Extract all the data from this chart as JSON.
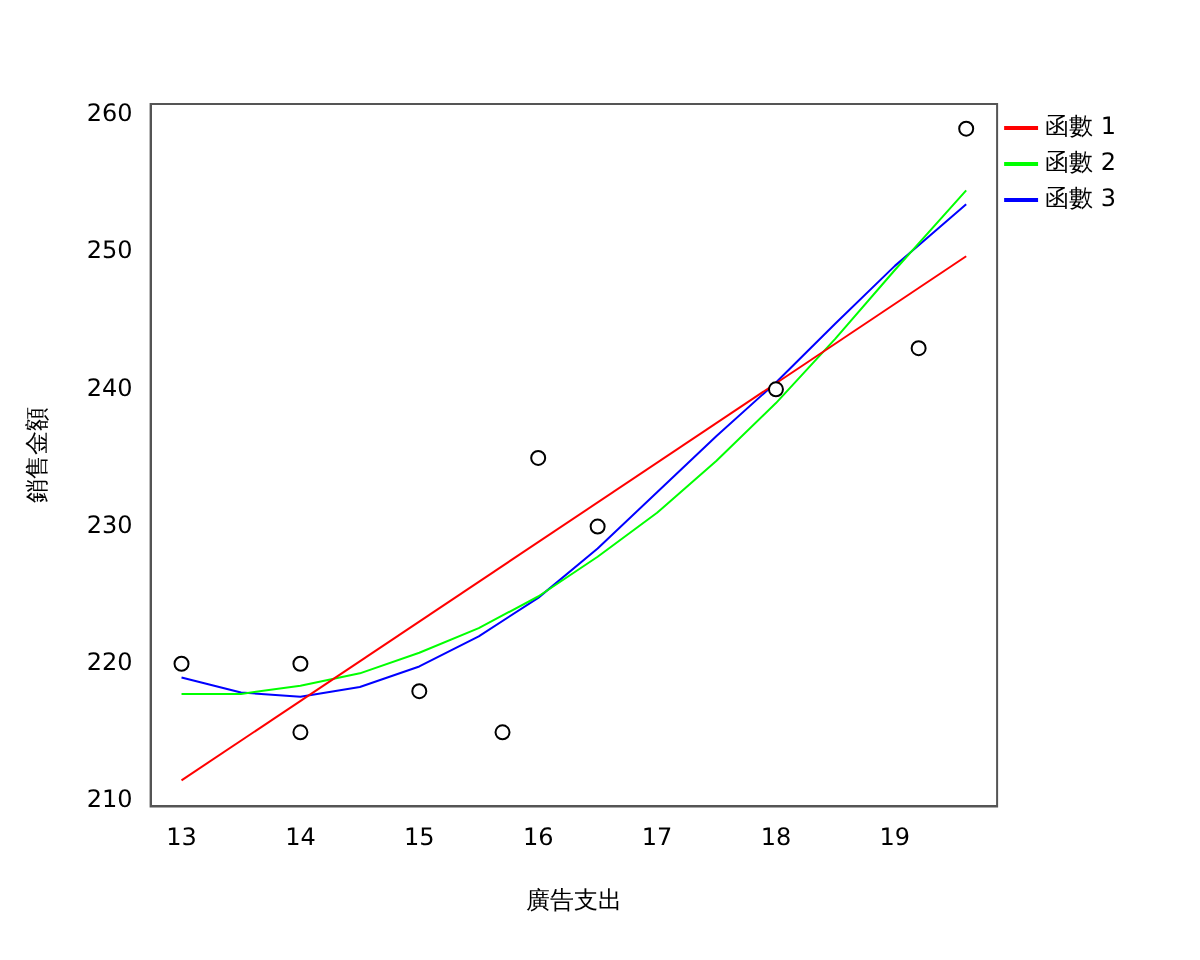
{
  "chart_data": {
    "type": "scatter",
    "xlabel": "廣告支出",
    "ylabel": "銷售金額",
    "xlim": [
      12.74,
      19.86
    ],
    "xticks": [
      13,
      14,
      15,
      16,
      17,
      18,
      19
    ],
    "ylim": [
      209.6,
      260.8
    ],
    "yticks": [
      210,
      220,
      230,
      240,
      250,
      260
    ],
    "grid": false,
    "legend": "top right",
    "series": [
      {
        "color": "#000000",
        "marker": "circle",
        "x": [
          13,
          14,
          14,
          15,
          15.7,
          16,
          16.5,
          18,
          19.2,
          19.6
        ],
        "values": [
          220,
          220,
          215,
          218,
          215,
          235,
          230,
          240,
          243,
          259
        ]
      },
      {
        "type": "line",
        "name": "函數 1",
        "color": "#ff0000",
        "marker": "none",
        "x": [
          13,
          19.6
        ],
        "values": [
          211.5,
          249.7
        ]
      },
      {
        "type": "line",
        "name": "函數 2",
        "color": "#00ff00",
        "marker": "none",
        "x": [
          13,
          13.5,
          14,
          14.5,
          15,
          15.5,
          16,
          16.5,
          17,
          17.5,
          18,
          18.5,
          19,
          19.6
        ],
        "values": [
          217.8,
          217.8,
          218.4,
          219.3,
          220.8,
          222.6,
          224.9,
          227.8,
          231,
          234.8,
          239,
          243.7,
          248.7,
          254.5
        ]
      },
      {
        "type": "line",
        "name": "函數 3",
        "color": "#0000ff",
        "marker": "none",
        "x": [
          13,
          13.5,
          14,
          14.5,
          15,
          15.5,
          16,
          16.5,
          17,
          17.5,
          18,
          18.5,
          19,
          19.6
        ],
        "values": [
          219,
          217.9,
          217.6,
          218.3,
          219.8,
          222,
          224.8,
          228.4,
          232.5,
          236.6,
          240.5,
          244.8,
          249,
          253.5
        ]
      }
    ]
  }
}
